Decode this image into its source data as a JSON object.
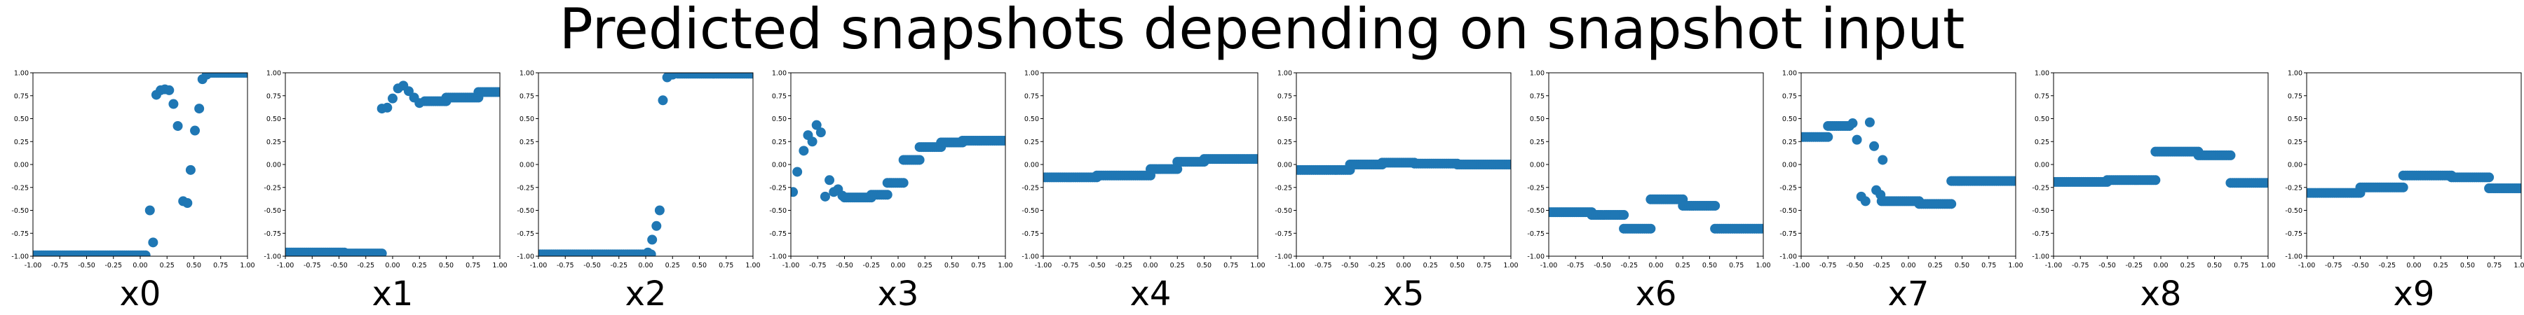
{
  "figure": {
    "title": "Predicted snapshots depending on snapshot input"
  },
  "chart_data": [
    {
      "type": "scatter",
      "xlabel": "x0",
      "xlim": [
        -1,
        1
      ],
      "ylim": [
        -1,
        1
      ],
      "color": "#1f77b4",
      "xticks": [
        "-1.00",
        "-0.75",
        "-0.50",
        "-0.25",
        "0.00",
        "0.25",
        "0.50",
        "0.75",
        "1.00"
      ],
      "yticks": [
        "-1.00",
        "-0.75",
        "-0.50",
        "-0.25",
        "0.00",
        "0.25",
        "0.50",
        "0.75",
        "1.00"
      ],
      "segments": [
        {
          "x0": -1,
          "x1": 0.05,
          "y": -0.99
        },
        {
          "x0": 0.65,
          "x1": 1,
          "y": 1.0
        }
      ],
      "points": [
        [
          0.09,
          -0.5
        ],
        [
          0.12,
          -0.85
        ],
        [
          0.15,
          0.76
        ],
        [
          0.19,
          0.81
        ],
        [
          0.23,
          0.82
        ],
        [
          0.27,
          0.81
        ],
        [
          0.31,
          0.66
        ],
        [
          0.35,
          0.42
        ],
        [
          0.4,
          -0.4
        ],
        [
          0.44,
          -0.42
        ],
        [
          0.47,
          -0.06
        ],
        [
          0.51,
          0.37
        ],
        [
          0.55,
          0.61
        ],
        [
          0.58,
          0.93
        ],
        [
          0.62,
          0.98
        ]
      ]
    },
    {
      "type": "scatter",
      "xlabel": "x1",
      "xlim": [
        -1,
        1
      ],
      "ylim": [
        -1,
        1
      ],
      "color": "#1f77b4",
      "xticks": [
        "-1.00",
        "-0.75",
        "-0.50",
        "-0.25",
        "0.00",
        "0.25",
        "0.50",
        "0.75",
        "1.00"
      ],
      "yticks": [
        "-1.00",
        "-0.75",
        "-0.50",
        "-0.25",
        "0.00",
        "0.25",
        "0.50",
        "0.75",
        "1.00"
      ],
      "segments": [
        {
          "x0": -1,
          "x1": -0.45,
          "y": -0.96
        },
        {
          "x0": -0.45,
          "x1": -0.1,
          "y": -0.97
        },
        {
          "x0": 0.3,
          "x1": 0.5,
          "y": 0.69
        },
        {
          "x0": 0.5,
          "x1": 0.8,
          "y": 0.73
        },
        {
          "x0": 0.8,
          "x1": 1,
          "y": 0.79
        }
      ],
      "points": [
        [
          -0.1,
          0.61
        ],
        [
          -0.05,
          0.62
        ],
        [
          0.0,
          0.72
        ],
        [
          0.05,
          0.83
        ],
        [
          0.1,
          0.86
        ],
        [
          0.15,
          0.8
        ],
        [
          0.2,
          0.73
        ],
        [
          0.25,
          0.67
        ]
      ]
    },
    {
      "type": "scatter",
      "xlabel": "x2",
      "xlim": [
        -1,
        1
      ],
      "ylim": [
        -1,
        1
      ],
      "color": "#1f77b4",
      "xticks": [
        "-1.00",
        "-0.75",
        "-0.50",
        "-0.25",
        "0.00",
        "0.25",
        "0.50",
        "0.75",
        "1.00"
      ],
      "yticks": [
        "-1.00",
        "-0.75",
        "-0.50",
        "-0.25",
        "0.00",
        "0.25",
        "0.50",
        "0.75",
        "1.00"
      ],
      "segments": [
        {
          "x0": -1,
          "x1": 0.05,
          "y": -0.98
        },
        {
          "x0": 0.3,
          "x1": 1,
          "y": 0.99
        }
      ],
      "points": [
        [
          0.02,
          -0.96
        ],
        [
          0.06,
          -0.82
        ],
        [
          0.1,
          -0.67
        ],
        [
          0.13,
          -0.5
        ],
        [
          0.16,
          0.7
        ],
        [
          0.2,
          0.95
        ],
        [
          0.25,
          0.98
        ]
      ]
    },
    {
      "type": "scatter",
      "xlabel": "x3",
      "xlim": [
        -1,
        1
      ],
      "ylim": [
        -1,
        1
      ],
      "color": "#1f77b4",
      "xticks": [
        "-1.00",
        "-0.75",
        "-0.50",
        "-0.25",
        "0.00",
        "0.25",
        "0.50",
        "0.75",
        "1.00"
      ],
      "yticks": [
        "-1.00",
        "-0.75",
        "-0.50",
        "-0.25",
        "0.00",
        "0.25",
        "0.50",
        "0.75",
        "1.00"
      ],
      "segments": [
        {
          "x0": -0.5,
          "x1": -0.25,
          "y": -0.36
        },
        {
          "x0": -0.25,
          "x1": -0.1,
          "y": -0.33
        },
        {
          "x0": -0.1,
          "x1": 0.05,
          "y": -0.2
        },
        {
          "x0": 0.05,
          "x1": 0.2,
          "y": 0.05
        },
        {
          "x0": 0.2,
          "x1": 0.4,
          "y": 0.19
        },
        {
          "x0": 0.4,
          "x1": 0.6,
          "y": 0.24
        },
        {
          "x0": 0.6,
          "x1": 1,
          "y": 0.26
        }
      ],
      "points": [
        [
          -0.98,
          -0.3
        ],
        [
          -0.94,
          -0.08
        ],
        [
          -0.88,
          0.15
        ],
        [
          -0.84,
          0.32
        ],
        [
          -0.8,
          0.25
        ],
        [
          -0.76,
          0.43
        ],
        [
          -0.72,
          0.35
        ],
        [
          -0.68,
          -0.35
        ],
        [
          -0.64,
          -0.17
        ],
        [
          -0.6,
          -0.3
        ],
        [
          -0.56,
          -0.27
        ],
        [
          -0.52,
          -0.34
        ]
      ]
    },
    {
      "type": "scatter",
      "xlabel": "x4",
      "xlim": [
        -1,
        1
      ],
      "ylim": [
        -1,
        1
      ],
      "color": "#1f77b4",
      "xticks": [
        "-1.00",
        "-0.75",
        "-0.50",
        "-0.25",
        "0.00",
        "0.25",
        "0.50",
        "0.75",
        "1.00"
      ],
      "yticks": [
        "-1.00",
        "-0.75",
        "-0.50",
        "-0.25",
        "0.00",
        "0.25",
        "0.50",
        "0.75",
        "1.00"
      ],
      "segments": [
        {
          "x0": -1,
          "x1": -0.5,
          "y": -0.14
        },
        {
          "x0": -0.5,
          "x1": 0.0,
          "y": -0.12
        },
        {
          "x0": 0.0,
          "x1": 0.25,
          "y": -0.05
        },
        {
          "x0": 0.25,
          "x1": 0.5,
          "y": 0.03
        },
        {
          "x0": 0.5,
          "x1": 1,
          "y": 0.06
        }
      ],
      "points": []
    },
    {
      "type": "scatter",
      "xlabel": "x5",
      "xlim": [
        -1,
        1
      ],
      "ylim": [
        -1,
        1
      ],
      "color": "#1f77b4",
      "xticks": [
        "-1.00",
        "-0.75",
        "-0.50",
        "-0.25",
        "0.00",
        "0.25",
        "0.50",
        "0.75",
        "1.00"
      ],
      "yticks": [
        "-1.00",
        "-0.75",
        "-0.50",
        "-0.25",
        "0.00",
        "0.25",
        "0.50",
        "0.75",
        "1.00"
      ],
      "segments": [
        {
          "x0": -1,
          "x1": -0.5,
          "y": -0.06
        },
        {
          "x0": -0.5,
          "x1": -0.2,
          "y": 0.0
        },
        {
          "x0": -0.2,
          "x1": 0.1,
          "y": 0.02
        },
        {
          "x0": 0.1,
          "x1": 0.5,
          "y": 0.01
        },
        {
          "x0": 0.5,
          "x1": 1,
          "y": 0.0
        }
      ],
      "points": []
    },
    {
      "type": "scatter",
      "xlabel": "x6",
      "xlim": [
        -1,
        1
      ],
      "ylim": [
        -1,
        1
      ],
      "color": "#1f77b4",
      "xticks": [
        "-1.00",
        "-0.75",
        "-0.50",
        "-0.25",
        "0.00",
        "0.25",
        "0.50",
        "0.75",
        "1.00"
      ],
      "yticks": [
        "-1.00",
        "-0.75",
        "-0.50",
        "-0.25",
        "0.00",
        "0.25",
        "0.50",
        "0.75",
        "1.00"
      ],
      "segments": [
        {
          "x0": -1,
          "x1": -0.6,
          "y": -0.52
        },
        {
          "x0": -0.6,
          "x1": -0.3,
          "y": -0.55
        },
        {
          "x0": -0.3,
          "x1": -0.05,
          "y": -0.7
        },
        {
          "x0": -0.05,
          "x1": 0.25,
          "y": -0.38
        },
        {
          "x0": 0.25,
          "x1": 0.55,
          "y": -0.45
        },
        {
          "x0": 0.55,
          "x1": 1,
          "y": -0.7
        }
      ],
      "points": []
    },
    {
      "type": "scatter",
      "xlabel": "x7",
      "xlim": [
        -1,
        1
      ],
      "ylim": [
        -1,
        1
      ],
      "color": "#1f77b4",
      "xticks": [
        "-1.00",
        "-0.75",
        "-0.50",
        "-0.25",
        "0.00",
        "0.25",
        "0.50",
        "0.75",
        "1.00"
      ],
      "yticks": [
        "-1.00",
        "-0.75",
        "-0.50",
        "-0.25",
        "0.00",
        "0.25",
        "0.50",
        "0.75",
        "1.00"
      ],
      "segments": [
        {
          "x0": -1,
          "x1": -0.75,
          "y": 0.3
        },
        {
          "x0": -0.75,
          "x1": -0.55,
          "y": 0.42
        },
        {
          "x0": -0.25,
          "x1": 0.1,
          "y": -0.4
        },
        {
          "x0": 0.1,
          "x1": 0.4,
          "y": -0.43
        },
        {
          "x0": 0.4,
          "x1": 1,
          "y": -0.18
        }
      ],
      "points": [
        [
          -0.52,
          0.45
        ],
        [
          -0.48,
          0.27
        ],
        [
          -0.44,
          -0.35
        ],
        [
          -0.4,
          -0.4
        ],
        [
          -0.36,
          0.46
        ],
        [
          -0.32,
          0.2
        ],
        [
          -0.3,
          -0.28
        ],
        [
          -0.26,
          -0.33
        ],
        [
          -0.24,
          0.05
        ]
      ]
    },
    {
      "type": "scatter",
      "xlabel": "x8",
      "xlim": [
        -1,
        1
      ],
      "ylim": [
        -1,
        1
      ],
      "color": "#1f77b4",
      "xticks": [
        "-1.00",
        "-0.75",
        "-0.50",
        "-0.25",
        "0.00",
        "0.25",
        "0.50",
        "0.75",
        "1.00"
      ],
      "yticks": [
        "-1.00",
        "-0.75",
        "-0.50",
        "-0.25",
        "0.00",
        "0.25",
        "0.50",
        "0.75",
        "1.00"
      ],
      "segments": [
        {
          "x0": -1,
          "x1": -0.5,
          "y": -0.19
        },
        {
          "x0": -0.5,
          "x1": -0.05,
          "y": -0.17
        },
        {
          "x0": -0.05,
          "x1": 0.35,
          "y": 0.14
        },
        {
          "x0": 0.35,
          "x1": 0.65,
          "y": 0.1
        },
        {
          "x0": 0.65,
          "x1": 1,
          "y": -0.2
        }
      ],
      "points": []
    },
    {
      "type": "scatter",
      "xlabel": "x9",
      "xlim": [
        -1,
        1
      ],
      "ylim": [
        -1,
        1
      ],
      "color": "#1f77b4",
      "xticks": [
        "-1.00",
        "-0.75",
        "-0.50",
        "-0.25",
        "0.00",
        "0.25",
        "0.50",
        "0.75",
        "1.00"
      ],
      "yticks": [
        "-1.00",
        "-0.75",
        "-0.50",
        "-0.25",
        "0.00",
        "0.25",
        "0.50",
        "0.75",
        "1.00"
      ],
      "segments": [
        {
          "x0": -1,
          "x1": -0.5,
          "y": -0.31
        },
        {
          "x0": -0.5,
          "x1": -0.1,
          "y": -0.25
        },
        {
          "x0": -0.1,
          "x1": 0.35,
          "y": -0.12
        },
        {
          "x0": 0.35,
          "x1": 0.7,
          "y": -0.14
        },
        {
          "x0": 0.7,
          "x1": 1,
          "y": -0.26
        }
      ],
      "points": []
    }
  ]
}
